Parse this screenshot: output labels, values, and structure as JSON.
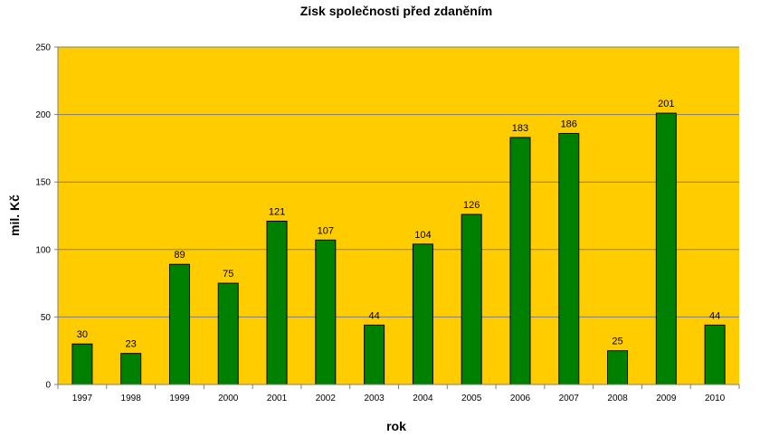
{
  "chart_data": {
    "type": "bar",
    "title": "Zisk společnosti před zdaněním",
    "xlabel": "rok",
    "ylabel": "mil. Kč",
    "categories": [
      "1997",
      "1998",
      "1999",
      "2000",
      "2001",
      "2002",
      "2003",
      "2004",
      "2005",
      "2006",
      "2007",
      "2008",
      "2009",
      "2010"
    ],
    "values": [
      30,
      23,
      89,
      75,
      121,
      107,
      44,
      104,
      126,
      183,
      186,
      25,
      201,
      44
    ],
    "ylim": [
      0,
      250
    ],
    "yticks": [
      0,
      50,
      100,
      150,
      200,
      250
    ],
    "grid": true,
    "legend": "none",
    "data_labels": true,
    "colors": {
      "plot_background": "#FFCC00",
      "bar_fill": "#008000",
      "bar_stroke": "#000000",
      "gridline": "#7F7F7F",
      "axis": "#7F7F7F"
    }
  }
}
